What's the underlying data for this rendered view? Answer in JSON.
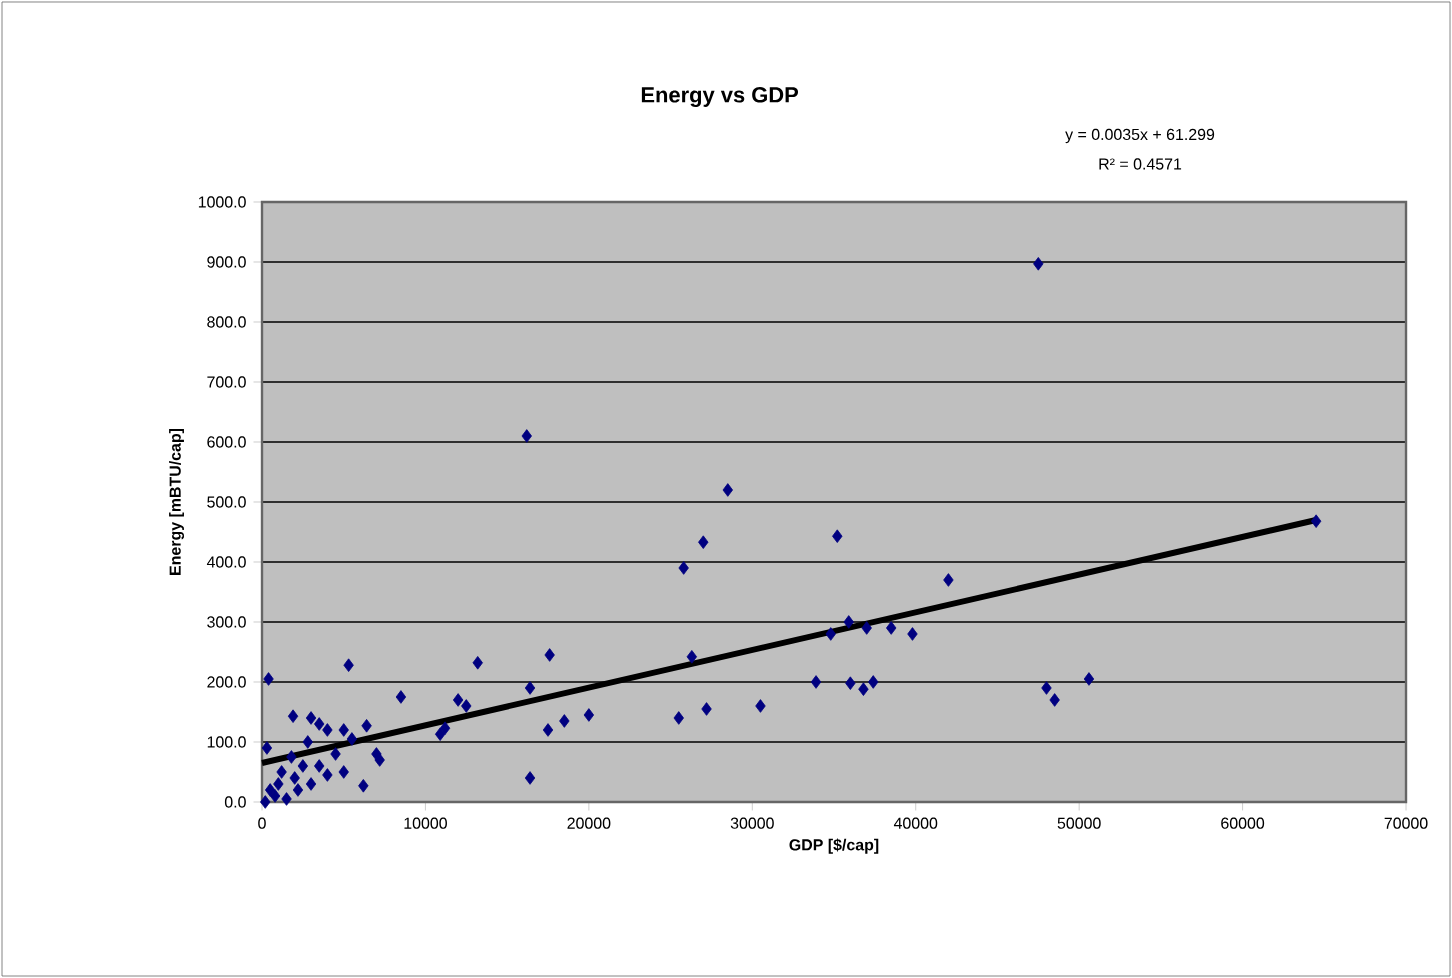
{
  "chart_data": {
    "type": "scatter",
    "title": "Energy vs GDP",
    "xlabel": "GDP [$/cap]",
    "ylabel": "Energy [mBTU/cap]",
    "annotations": [
      "y = 0.0035x + 61.299",
      "R² = 0.4571"
    ],
    "xlim": [
      0,
      70000
    ],
    "xticks": [
      0,
      10000,
      20000,
      30000,
      40000,
      50000,
      60000,
      70000
    ],
    "ylim": [
      0,
      1000
    ],
    "yticks": [
      {
        "value": 0,
        "label": "0.0"
      },
      {
        "value": 100,
        "label": "100.0"
      },
      {
        "value": 200,
        "label": "200.0"
      },
      {
        "value": 300,
        "label": "300.0"
      },
      {
        "value": 400,
        "label": "400.0"
      },
      {
        "value": 500,
        "label": "500.0"
      },
      {
        "value": 600,
        "label": "600.0"
      },
      {
        "value": 700,
        "label": "700.0"
      },
      {
        "value": 800,
        "label": "800.0"
      },
      {
        "value": 900,
        "label": "900.0"
      },
      {
        "value": 1000,
        "label": "1000.0"
      }
    ],
    "grid": "y",
    "marker": "diamond",
    "series": [
      {
        "color": "#000080",
        "x": [
          47500,
          16200,
          28500,
          35200,
          27000,
          25800,
          42000,
          64500,
          35900,
          37000,
          38500,
          39800,
          34800,
          17600,
          26300,
          13200,
          5300,
          400,
          50600,
          33900,
          37400,
          36000,
          36800,
          48000,
          48500,
          16400,
          8500,
          12000,
          12500,
          20000,
          30500,
          27200,
          25500,
          18500,
          17500,
          11200,
          1900,
          3000,
          3500,
          4000,
          5000,
          5500,
          6400,
          7000,
          7200,
          6200,
          16400,
          300,
          500,
          800,
          1000,
          1500,
          2000,
          2200,
          2500,
          3000,
          3500,
          4000,
          4500,
          1800,
          5000,
          2800,
          200,
          1200,
          10900
        ],
        "values": [
          897,
          610,
          520,
          443,
          433,
          390,
          370,
          468,
          300,
          290,
          290,
          280,
          280,
          245,
          242,
          232,
          228,
          205,
          205,
          200,
          200,
          198,
          188,
          190,
          170,
          190,
          175,
          170,
          160,
          145,
          160,
          155,
          140,
          135,
          120,
          123,
          143,
          140,
          130,
          120,
          120,
          105,
          127,
          80,
          70,
          27,
          40,
          90,
          20,
          10,
          30,
          5,
          40,
          20,
          60,
          30,
          60,
          45,
          80,
          75,
          50,
          100,
          0,
          50,
          113
        ]
      },
      {
        "type": "line",
        "color": "#000000",
        "marker": "none",
        "x": [
          0,
          64500
        ],
        "values": [
          65,
          470
        ]
      }
    ]
  }
}
